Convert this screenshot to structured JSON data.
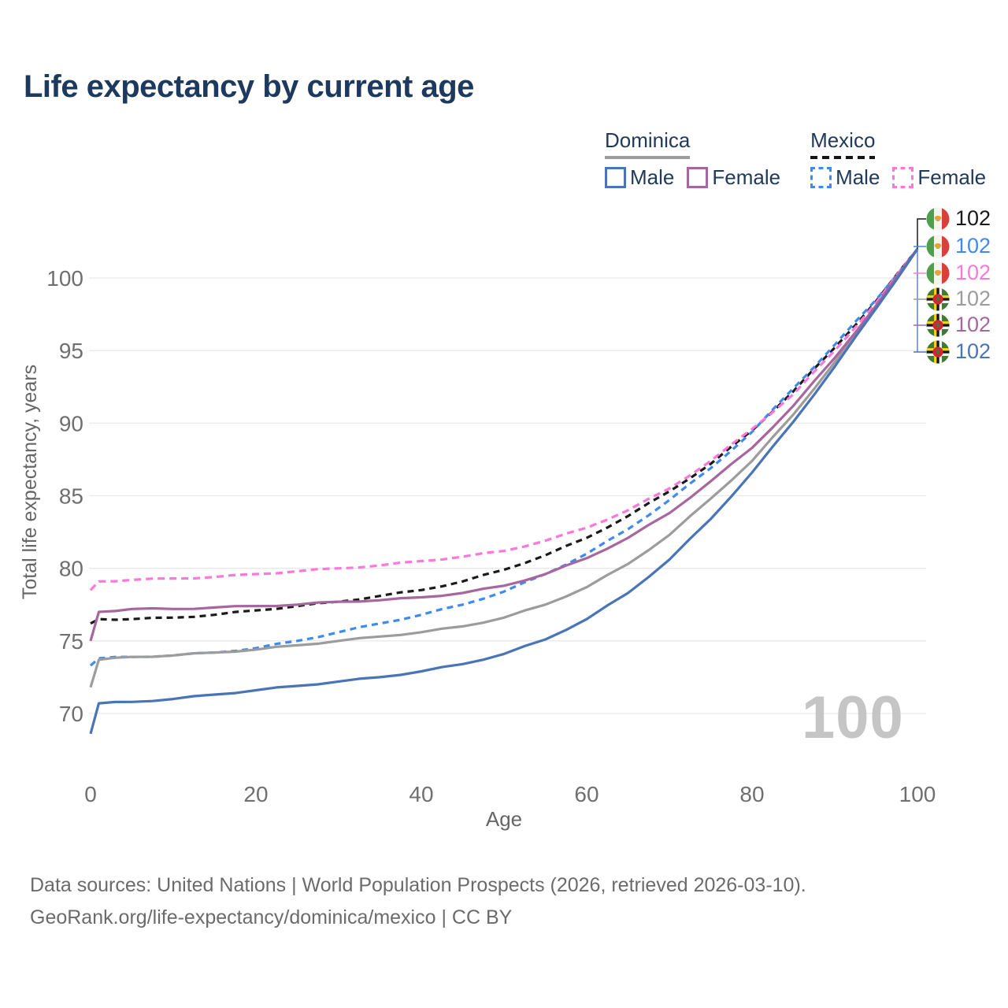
{
  "title": "Life expectancy by current age",
  "age_counter": "100",
  "footer": {
    "line1": "Data sources: United Nations | World Population Prospects (2026, retrieved 2026-03-10).",
    "line2": "GeoRank.org/life-expectancy/dominica/mexico | CC BY"
  },
  "colors": {
    "dominica_male": "#4a74b8",
    "dominica_female": "#a7669f",
    "dominica_total": "#9c9c9c",
    "mexico_male": "#3d8af0",
    "mexico_female": "#ff77d9",
    "mexico_total": "#1a1a1a",
    "grid": "#e9e9e9",
    "axis_text": "#6f6f6f",
    "navy_text": "#203a5c"
  },
  "legend": {
    "groups": [
      {
        "label": "Dominica",
        "line_style": "solid",
        "underline_color": "#9e9e9e",
        "items": [
          {
            "label": "Male",
            "color": "#4a74b8"
          },
          {
            "label": "Female",
            "color": "#a7669f"
          }
        ]
      },
      {
        "label": "Mexico",
        "line_style": "dashed",
        "underline_color": "#141414",
        "items": [
          {
            "label": "Male",
            "color": "#3d8af0"
          },
          {
            "label": "Female",
            "color": "#ff77d9"
          }
        ]
      }
    ]
  },
  "end_labels": [
    {
      "flag": "mexico",
      "series": "Mexico Total",
      "value": "102",
      "color": "#1a1a1a"
    },
    {
      "flag": "mexico",
      "series": "Mexico Male",
      "value": "102",
      "color": "#3d8af0"
    },
    {
      "flag": "mexico",
      "series": "Mexico Female",
      "value": "102",
      "color": "#ff77d9"
    },
    {
      "flag": "dominica",
      "series": "Dominica Total",
      "value": "102",
      "color": "#9c9c9c"
    },
    {
      "flag": "dominica",
      "series": "Dominica Female",
      "value": "102",
      "color": "#a7669f"
    },
    {
      "flag": "dominica",
      "series": "Dominica Male",
      "value": "102",
      "color": "#4a74b8"
    }
  ],
  "chart_data": {
    "type": "line",
    "title": "Life expectancy by current age",
    "xlabel": "Age",
    "ylabel": "Total life expectancy, years",
    "x_ticks": [
      0,
      20,
      40,
      60,
      80,
      100
    ],
    "y_ticks": [
      70,
      75,
      80,
      85,
      90,
      95,
      100
    ],
    "xlim": [
      0,
      100
    ],
    "ylim": [
      67.5,
      103.5
    ],
    "grid": "horizontal",
    "legend_position": "top-right",
    "ages": [
      0,
      1,
      5,
      10,
      15,
      20,
      25,
      30,
      35,
      40,
      45,
      50,
      55,
      60,
      65,
      70,
      75,
      80,
      85,
      90,
      95,
      100
    ],
    "series": [
      {
        "id": "mexico-total",
        "country": "Mexico",
        "sex": "Total",
        "color": "#1a1a1a",
        "dash": "8 6",
        "values": [
          76.2,
          76.5,
          76.5,
          76.6,
          76.8,
          77.1,
          77.4,
          77.7,
          78.1,
          78.5,
          79.1,
          79.9,
          80.9,
          82.1,
          83.6,
          85.3,
          87.2,
          89.5,
          92.2,
          95.2,
          98.4,
          102
        ]
      },
      {
        "id": "mexico-male",
        "country": "Mexico",
        "sex": "Male",
        "color": "#3d8af0",
        "dash": "8 6",
        "values": [
          73.3,
          73.8,
          73.9,
          74.0,
          74.2,
          74.5,
          75.0,
          75.6,
          76.2,
          76.8,
          77.5,
          78.4,
          79.6,
          81.0,
          82.7,
          84.7,
          86.9,
          89.4,
          92.4,
          95.4,
          98.5,
          102
        ]
      },
      {
        "id": "mexico-female",
        "country": "Mexico",
        "sex": "Female",
        "color": "#ff77d9",
        "dash": "9 6",
        "values": [
          78.5,
          79.1,
          79.2,
          79.3,
          79.4,
          79.6,
          79.8,
          80.0,
          80.2,
          80.5,
          80.8,
          81.2,
          81.9,
          82.8,
          84.0,
          85.5,
          87.4,
          89.6,
          92.0,
          95.0,
          98.3,
          102
        ]
      },
      {
        "id": "dominica-total",
        "country": "Dominica",
        "sex": "Total",
        "color": "#9c9c9c",
        "dash": null,
        "values": [
          71.8,
          73.7,
          73.9,
          74.0,
          74.2,
          74.4,
          74.7,
          75.0,
          75.3,
          75.6,
          76.0,
          76.6,
          77.5,
          78.7,
          80.3,
          82.3,
          84.8,
          87.4,
          90.6,
          94.2,
          98.0,
          102
        ]
      },
      {
        "id": "dominica-female",
        "country": "Dominica",
        "sex": "Female",
        "color": "#a7669f",
        "dash": null,
        "values": [
          75.0,
          77.0,
          77.2,
          77.2,
          77.3,
          77.4,
          77.5,
          77.7,
          77.8,
          78.0,
          78.3,
          78.8,
          79.6,
          80.7,
          82.1,
          83.8,
          86.0,
          88.3,
          91.2,
          94.5,
          98.1,
          102
        ]
      },
      {
        "id": "dominica-male",
        "country": "Dominica",
        "sex": "Male",
        "color": "#4a74b8",
        "dash": null,
        "values": [
          68.6,
          70.7,
          70.8,
          71.0,
          71.3,
          71.6,
          71.9,
          72.2,
          72.5,
          72.9,
          73.4,
          74.1,
          75.1,
          76.5,
          78.3,
          80.6,
          83.4,
          86.6,
          90.1,
          93.9,
          97.9,
          102
        ]
      }
    ]
  }
}
